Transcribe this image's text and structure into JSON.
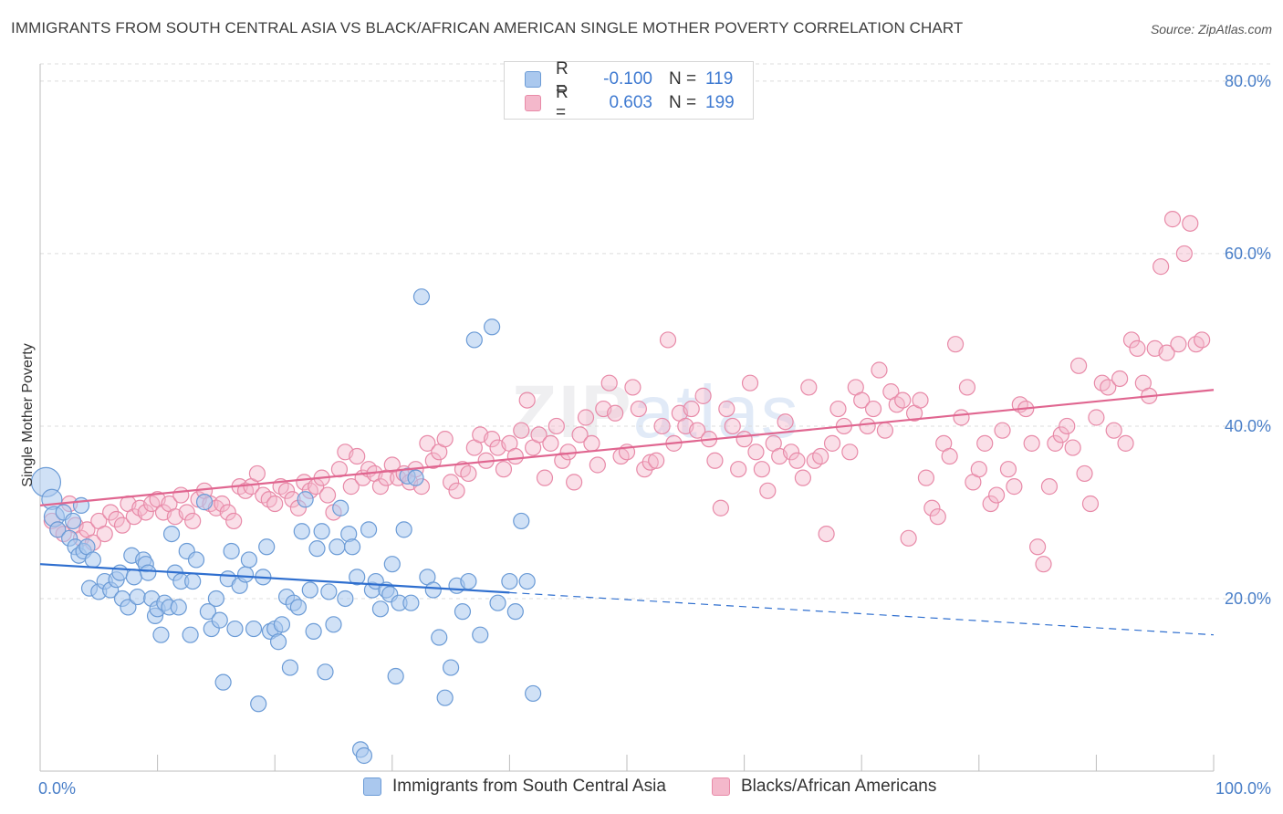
{
  "title": "IMMIGRANTS FROM SOUTH CENTRAL ASIA VS BLACK/AFRICAN AMERICAN SINGLE MOTHER POVERTY CORRELATION CHART",
  "source": "Source: ZipAtlas.com",
  "watermark": {
    "zip": "ZIP",
    "atlas": "atlas"
  },
  "legend": {
    "r_label": "R =",
    "n_label": "N =",
    "rows": [
      {
        "r": "-0.100",
        "n": "119"
      },
      {
        "r": "0.603",
        "n": "199"
      }
    ]
  },
  "colors": {
    "blue_fill": "#aac8ee",
    "blue_stroke": "#6b9bd6",
    "blue_line": "#2f6fcf",
    "pink_fill": "#f4b8cb",
    "pink_stroke": "#e88aa8",
    "pink_line": "#e06690",
    "grid": "#dcdcdc",
    "tick_text": "#4a7fc8"
  },
  "chart_data": {
    "type": "scatter",
    "title": "IMMIGRANTS FROM SOUTH CENTRAL ASIA VS BLACK/AFRICAN AMERICAN SINGLE MOTHER POVERTY CORRELATION CHART",
    "xlabel": "",
    "ylabel": "Single Mother Poverty",
    "xlim": [
      0,
      100
    ],
    "ylim": [
      0,
      82
    ],
    "x_tick_labels": [
      "0.0%",
      "100.0%"
    ],
    "y_ticks": [
      20,
      40,
      60,
      80
    ],
    "y_tick_labels": [
      "20.0%",
      "40.0%",
      "60.0%",
      "80.0%"
    ],
    "grid": true,
    "legend_position": "top-center",
    "series": [
      {
        "name": "Immigrants from South Central Asia",
        "r": -0.1,
        "n": 119,
        "trend": {
          "x0": 0,
          "y0": 24.0,
          "x1": 40,
          "y1": 20.7,
          "dash_to_x": 100,
          "dash_to_y": 15.8
        },
        "points": [
          [
            0.5,
            33.5
          ],
          [
            1,
            31.5
          ],
          [
            1.2,
            29.5
          ],
          [
            1.5,
            28
          ],
          [
            2,
            30
          ],
          [
            2.5,
            27
          ],
          [
            2.8,
            29
          ],
          [
            3,
            26
          ],
          [
            3.3,
            25
          ],
          [
            3.5,
            30.8
          ],
          [
            3.7,
            25.5
          ],
          [
            4,
            26
          ],
          [
            4.2,
            21.2
          ],
          [
            4.5,
            24.5
          ],
          [
            5,
            20.8
          ],
          [
            5.5,
            22
          ],
          [
            6,
            21
          ],
          [
            6.5,
            22.2
          ],
          [
            6.8,
            23
          ],
          [
            7,
            20
          ],
          [
            7.5,
            19
          ],
          [
            7.8,
            25
          ],
          [
            8,
            22.5
          ],
          [
            8.3,
            20.2
          ],
          [
            8.8,
            24.5
          ],
          [
            9,
            24
          ],
          [
            9.2,
            23
          ],
          [
            9.5,
            20
          ],
          [
            9.8,
            18
          ],
          [
            10,
            18.8
          ],
          [
            10.3,
            15.8
          ],
          [
            10.6,
            19.5
          ],
          [
            11,
            19
          ],
          [
            11.2,
            27.5
          ],
          [
            11.5,
            23
          ],
          [
            11.8,
            19
          ],
          [
            12,
            22
          ],
          [
            12.5,
            25.5
          ],
          [
            12.8,
            15.8
          ],
          [
            13,
            22
          ],
          [
            13.3,
            24.5
          ],
          [
            14,
            31.2
          ],
          [
            14.3,
            18.5
          ],
          [
            14.6,
            16.5
          ],
          [
            15,
            20
          ],
          [
            15.3,
            17.5
          ],
          [
            15.6,
            10.3
          ],
          [
            16,
            22.3
          ],
          [
            16.3,
            25.5
          ],
          [
            16.6,
            16.5
          ],
          [
            17,
            21.5
          ],
          [
            17.5,
            22.8
          ],
          [
            17.8,
            24.5
          ],
          [
            18.2,
            16.5
          ],
          [
            18.6,
            7.8
          ],
          [
            19,
            22.5
          ],
          [
            19.3,
            26
          ],
          [
            19.6,
            16.2
          ],
          [
            20,
            16.5
          ],
          [
            20.3,
            15
          ],
          [
            20.6,
            17
          ],
          [
            21,
            20.2
          ],
          [
            21.3,
            12
          ],
          [
            21.6,
            19.5
          ],
          [
            22,
            19
          ],
          [
            22.3,
            27.8
          ],
          [
            22.6,
            31.5
          ],
          [
            23,
            21
          ],
          [
            23.3,
            16.2
          ],
          [
            23.6,
            25.8
          ],
          [
            24,
            27.8
          ],
          [
            24.3,
            11.5
          ],
          [
            24.6,
            20.8
          ],
          [
            25,
            17
          ],
          [
            25.3,
            26
          ],
          [
            25.6,
            30.5
          ],
          [
            26,
            20
          ],
          [
            26.3,
            27.5
          ],
          [
            26.6,
            26
          ],
          [
            27,
            22.5
          ],
          [
            27.3,
            2.5
          ],
          [
            27.6,
            1.8
          ],
          [
            28,
            28
          ],
          [
            28.3,
            21
          ],
          [
            28.6,
            22
          ],
          [
            29,
            18.8
          ],
          [
            29.5,
            21
          ],
          [
            29.8,
            20.5
          ],
          [
            30,
            24
          ],
          [
            30.3,
            11
          ],
          [
            30.6,
            19.5
          ],
          [
            31,
            28
          ],
          [
            31.3,
            34.2
          ],
          [
            31.6,
            19.5
          ],
          [
            32,
            34
          ],
          [
            32.5,
            55
          ],
          [
            33,
            22.5
          ],
          [
            33.5,
            21
          ],
          [
            34,
            15.5
          ],
          [
            34.5,
            8.5
          ],
          [
            35,
            12
          ],
          [
            35.5,
            21.5
          ],
          [
            36,
            18.5
          ],
          [
            36.5,
            22
          ],
          [
            37,
            50
          ],
          [
            37.5,
            15.8
          ],
          [
            38.5,
            51.5
          ],
          [
            39,
            19.5
          ],
          [
            40,
            22
          ],
          [
            40.5,
            18.5
          ],
          [
            41,
            29
          ],
          [
            41.5,
            22
          ],
          [
            42,
            9
          ]
        ],
        "sizes_note": "large points near x=0"
      },
      {
        "name": "Blacks/African Americans",
        "r": 0.603,
        "n": 199,
        "trend": {
          "x0": 0,
          "y0": 30.8,
          "x1": 100,
          "y1": 44.2
        },
        "points": [
          [
            1,
            29
          ],
          [
            1.5,
            28
          ],
          [
            2,
            27.5
          ],
          [
            2.5,
            31
          ],
          [
            3,
            28.5
          ],
          [
            3.5,
            27
          ],
          [
            4,
            28
          ],
          [
            4.5,
            26.5
          ],
          [
            5,
            29
          ],
          [
            5.5,
            27.5
          ],
          [
            6,
            30
          ],
          [
            6.5,
            29.2
          ],
          [
            7,
            28.5
          ],
          [
            7.5,
            31
          ],
          [
            8,
            29.5
          ],
          [
            8.5,
            30.5
          ],
          [
            9,
            30
          ],
          [
            9.5,
            31
          ],
          [
            10,
            31.5
          ],
          [
            10.5,
            30
          ],
          [
            11,
            31
          ],
          [
            11.5,
            29.5
          ],
          [
            12,
            32
          ],
          [
            12.5,
            30
          ],
          [
            13,
            29
          ],
          [
            13.5,
            31.5
          ],
          [
            14,
            32.5
          ],
          [
            14.5,
            31
          ],
          [
            15,
            30.5
          ],
          [
            15.5,
            31
          ],
          [
            16,
            30
          ],
          [
            16.5,
            29
          ],
          [
            17,
            33
          ],
          [
            17.5,
            32.5
          ],
          [
            18,
            33
          ],
          [
            18.5,
            34.5
          ],
          [
            19,
            32
          ],
          [
            19.5,
            31.5
          ],
          [
            20,
            31
          ],
          [
            20.5,
            33
          ],
          [
            21,
            32.5
          ],
          [
            21.5,
            31.5
          ],
          [
            22,
            30.5
          ],
          [
            22.5,
            33.5
          ],
          [
            23,
            32.5
          ],
          [
            23.5,
            33
          ],
          [
            24,
            34
          ],
          [
            24.5,
            32
          ],
          [
            25,
            30
          ],
          [
            25.5,
            35
          ],
          [
            26,
            37
          ],
          [
            26.5,
            33
          ],
          [
            27,
            36.5
          ],
          [
            27.5,
            34
          ],
          [
            28,
            35
          ],
          [
            28.5,
            34.5
          ],
          [
            29,
            33
          ],
          [
            29.5,
            34
          ],
          [
            30,
            35.5
          ],
          [
            30.5,
            34
          ],
          [
            31,
            34.5
          ],
          [
            31.5,
            33.5
          ],
          [
            32,
            35
          ],
          [
            32.5,
            33
          ],
          [
            33,
            38
          ],
          [
            33.5,
            36
          ],
          [
            34,
            37
          ],
          [
            34.5,
            38.5
          ],
          [
            35,
            33.5
          ],
          [
            35.5,
            32.5
          ],
          [
            36,
            35
          ],
          [
            36.5,
            34.5
          ],
          [
            37,
            37.5
          ],
          [
            37.5,
            39
          ],
          [
            38,
            36
          ],
          [
            38.5,
            38.5
          ],
          [
            39,
            37.5
          ],
          [
            39.5,
            35
          ],
          [
            40,
            38
          ],
          [
            40.5,
            36.5
          ],
          [
            41,
            39.5
          ],
          [
            41.5,
            43
          ],
          [
            42,
            37.5
          ],
          [
            42.5,
            39
          ],
          [
            43,
            34
          ],
          [
            43.5,
            38
          ],
          [
            44,
            40
          ],
          [
            44.5,
            36
          ],
          [
            45,
            37
          ],
          [
            45.5,
            33.5
          ],
          [
            46,
            39
          ],
          [
            46.5,
            41
          ],
          [
            47,
            38
          ],
          [
            47.5,
            35.5
          ],
          [
            48,
            42
          ],
          [
            48.5,
            45
          ],
          [
            49,
            41.5
          ],
          [
            49.5,
            36.5
          ],
          [
            50,
            37
          ],
          [
            50.5,
            44.5
          ],
          [
            51,
            42
          ],
          [
            51.5,
            35
          ],
          [
            52,
            35.8
          ],
          [
            52.5,
            36
          ],
          [
            53,
            40
          ],
          [
            53.5,
            50
          ],
          [
            54,
            38
          ],
          [
            54.5,
            41.5
          ],
          [
            55,
            40
          ],
          [
            55.5,
            42
          ],
          [
            56,
            39.5
          ],
          [
            56.5,
            43.5
          ],
          [
            57,
            38.5
          ],
          [
            57.5,
            36
          ],
          [
            58,
            30.5
          ],
          [
            58.5,
            42
          ],
          [
            59,
            40
          ],
          [
            59.5,
            35
          ],
          [
            60,
            38.5
          ],
          [
            60.5,
            45
          ],
          [
            61,
            37
          ],
          [
            61.5,
            35
          ],
          [
            62,
            32.5
          ],
          [
            62.5,
            38
          ],
          [
            63,
            36.5
          ],
          [
            63.5,
            40.5
          ],
          [
            64,
            37
          ],
          [
            64.5,
            36
          ],
          [
            65,
            34
          ],
          [
            65.5,
            44.5
          ],
          [
            66,
            36
          ],
          [
            66.5,
            36.5
          ],
          [
            67,
            27.5
          ],
          [
            67.5,
            38
          ],
          [
            68,
            42
          ],
          [
            68.5,
            40
          ],
          [
            69,
            37
          ],
          [
            69.5,
            44.5
          ],
          [
            70,
            43
          ],
          [
            70.5,
            40
          ],
          [
            71,
            42
          ],
          [
            71.5,
            46.5
          ],
          [
            72,
            39.5
          ],
          [
            72.5,
            44
          ],
          [
            73,
            42.5
          ],
          [
            73.5,
            43
          ],
          [
            74,
            27
          ],
          [
            74.5,
            41.5
          ],
          [
            75,
            43
          ],
          [
            75.5,
            34
          ],
          [
            76,
            30.5
          ],
          [
            76.5,
            29.5
          ],
          [
            77,
            38
          ],
          [
            77.5,
            36.5
          ],
          [
            78,
            49.5
          ],
          [
            78.5,
            41
          ],
          [
            79,
            44.5
          ],
          [
            79.5,
            33.5
          ],
          [
            80,
            35
          ],
          [
            80.5,
            38
          ],
          [
            81,
            31
          ],
          [
            81.5,
            32
          ],
          [
            82,
            39.5
          ],
          [
            82.5,
            35
          ],
          [
            83,
            33
          ],
          [
            83.5,
            42.5
          ],
          [
            84,
            42
          ],
          [
            84.5,
            38
          ],
          [
            85,
            26
          ],
          [
            85.5,
            24
          ],
          [
            86,
            33
          ],
          [
            86.5,
            38
          ],
          [
            87,
            39
          ],
          [
            87.5,
            40
          ],
          [
            88,
            37.5
          ],
          [
            88.5,
            47
          ],
          [
            89,
            34.5
          ],
          [
            89.5,
            31
          ],
          [
            90,
            41
          ],
          [
            90.5,
            45
          ],
          [
            91,
            44.5
          ],
          [
            91.5,
            39.5
          ],
          [
            92,
            45.5
          ],
          [
            92.5,
            38
          ],
          [
            93,
            50
          ],
          [
            93.5,
            49
          ],
          [
            94,
            45
          ],
          [
            94.5,
            43.5
          ],
          [
            95,
            49
          ],
          [
            95.5,
            58.5
          ],
          [
            96,
            48.5
          ],
          [
            96.5,
            64
          ],
          [
            97,
            49.5
          ],
          [
            97.5,
            60
          ],
          [
            98,
            63.5
          ],
          [
            98.5,
            49.5
          ],
          [
            99,
            50
          ]
        ]
      }
    ]
  },
  "bottom_legend": [
    {
      "label": "Immigrants from South Central Asia"
    },
    {
      "label": "Blacks/African Americans"
    }
  ]
}
